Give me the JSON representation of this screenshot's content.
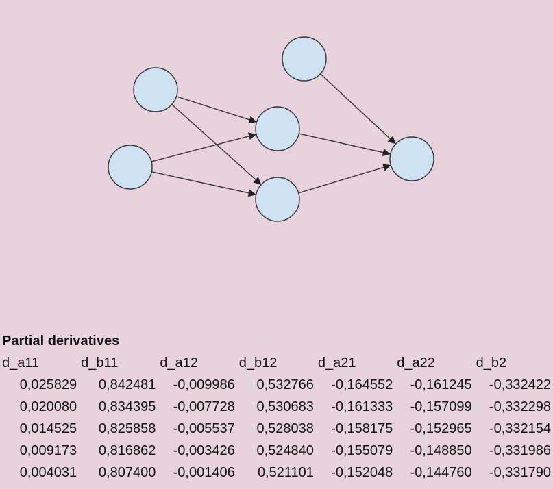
{
  "diagram": {
    "node_fill": "#cfe2f3",
    "node_stroke": "#333333",
    "edge_color": "#333333"
  },
  "section_title": "Partial derivatives",
  "table": {
    "headers": [
      "d_a11",
      "d_b11",
      "d_a12",
      "d_b12",
      "d_a21",
      "d_a22",
      "d_b2"
    ],
    "rows": [
      [
        "0,025829",
        "0,842481",
        "-0,009986",
        "0,532766",
        "-0,164552",
        "-0,161245",
        "-0,332422"
      ],
      [
        "0,020080",
        "0,834395",
        "-0,007728",
        "0,530683",
        "-0,161333",
        "-0,157099",
        "-0,332298"
      ],
      [
        "0,014525",
        "0,825858",
        "-0,005537",
        "0,528038",
        "-0,158175",
        "-0,152965",
        "-0,332154"
      ],
      [
        "0,009173",
        "0,816862",
        "-0,003426",
        "0,524840",
        "-0,155079",
        "-0,148850",
        "-0,331986"
      ],
      [
        "0,004031",
        "0,807400",
        "-0,001406",
        "0,521101",
        "-0,152048",
        "-0,144760",
        "-0,331790"
      ]
    ]
  }
}
